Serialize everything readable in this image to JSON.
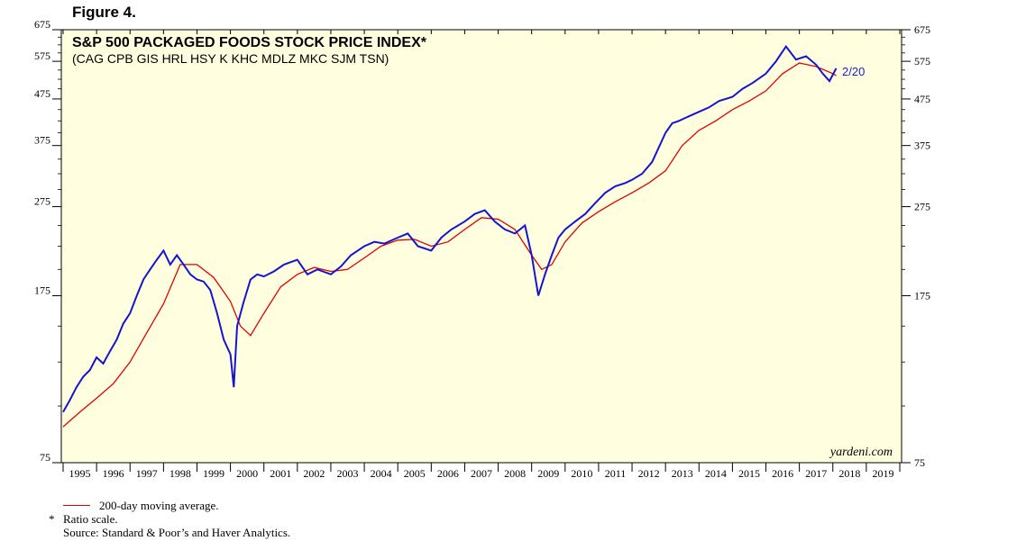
{
  "figure_label": "Figure 4.",
  "chart_data": {
    "type": "line",
    "title": "S&P 500 PACKAGED FOODS STOCK PRICE INDEX*",
    "subtitle": "(CAG CPB GIS HRL HSY K KHC MDLZ MKC SJM TSN)",
    "scale": "log",
    "ylim": [
      75,
      675
    ],
    "y_ticks": [
      75,
      175,
      275,
      375,
      475,
      575,
      675
    ],
    "xlim": [
      1995,
      2020
    ],
    "x_tick_labels": [
      "1995",
      "1996",
      "1997",
      "1998",
      "1999",
      "2000",
      "2001",
      "2002",
      "2003",
      "2004",
      "2005",
      "2006",
      "2007",
      "2008",
      "2009",
      "2010",
      "2011",
      "2012",
      "2013",
      "2014",
      "2015",
      "2016",
      "2017",
      "2018",
      "2019"
    ],
    "end_label": "2/20",
    "watermark": "yardeni.com",
    "colors": {
      "index": "#1414d2",
      "moving_average": "#e00000",
      "plot_bg": "#ffffe0"
    },
    "series": [
      {
        "name": "S&P 500 Packaged Foods Stock Price Index",
        "x": [
          1995.0,
          1995.2,
          1995.4,
          1995.6,
          1995.8,
          1996.0,
          1996.2,
          1996.4,
          1996.6,
          1996.8,
          1997.0,
          1997.2,
          1997.4,
          1997.6,
          1997.8,
          1998.0,
          1998.2,
          1998.4,
          1998.6,
          1998.8,
          1999.0,
          1999.2,
          1999.4,
          1999.6,
          1999.8,
          2000.0,
          2000.1,
          2000.2,
          2000.4,
          2000.6,
          2000.8,
          2001.0,
          2001.3,
          2001.6,
          2002.0,
          2002.3,
          2002.6,
          2003.0,
          2003.3,
          2003.6,
          2004.0,
          2004.3,
          2004.6,
          2005.0,
          2005.3,
          2005.6,
          2006.0,
          2006.3,
          2006.6,
          2007.0,
          2007.3,
          2007.6,
          2007.9,
          2008.2,
          2008.5,
          2008.8,
          2009.0,
          2009.2,
          2009.4,
          2009.6,
          2009.8,
          2010.0,
          2010.3,
          2010.6,
          2010.9,
          2011.2,
          2011.5,
          2011.8,
          2012.0,
          2012.3,
          2012.6,
          2013.0,
          2013.2,
          2013.4,
          2013.7,
          2014.0,
          2014.3,
          2014.6,
          2015.0,
          2015.3,
          2015.6,
          2016.0,
          2016.3,
          2016.6,
          2016.9,
          2017.2,
          2017.5,
          2017.7,
          2017.9,
          2018.1
        ],
        "values": [
          97,
          103,
          110,
          116,
          120,
          128,
          124,
          132,
          140,
          152,
          160,
          175,
          190,
          200,
          210,
          220,
          205,
          215,
          205,
          195,
          190,
          188,
          180,
          160,
          140,
          130,
          110,
          150,
          170,
          190,
          195,
          193,
          198,
          205,
          210,
          195,
          200,
          195,
          203,
          215,
          225,
          230,
          228,
          235,
          240,
          225,
          220,
          235,
          245,
          255,
          265,
          270,
          255,
          245,
          240,
          250,
          215,
          175,
          195,
          215,
          235,
          245,
          255,
          265,
          280,
          295,
          305,
          310,
          315,
          325,
          345,
          400,
          420,
          425,
          435,
          445,
          455,
          470,
          480,
          500,
          515,
          540,
          575,
          620,
          580,
          590,
          565,
          540,
          520,
          555
        ]
      },
      {
        "name": "200-day moving average",
        "x": [
          1995.0,
          1995.5,
          1996.0,
          1996.5,
          1997.0,
          1997.5,
          1998.0,
          1998.5,
          1999.0,
          1999.5,
          2000.0,
          2000.3,
          2000.6,
          2001.0,
          2001.5,
          2002.0,
          2002.5,
          2003.0,
          2003.5,
          2004.0,
          2004.5,
          2005.0,
          2005.5,
          2006.0,
          2006.5,
          2007.0,
          2007.5,
          2008.0,
          2008.5,
          2009.0,
          2009.3,
          2009.6,
          2010.0,
          2010.5,
          2011.0,
          2011.5,
          2012.0,
          2012.5,
          2013.0,
          2013.5,
          2014.0,
          2014.5,
          2015.0,
          2015.5,
          2016.0,
          2016.5,
          2017.0,
          2017.5,
          2018.0,
          2018.1
        ],
        "values": [
          90,
          97,
          104,
          112,
          125,
          145,
          168,
          205,
          205,
          192,
          170,
          150,
          143,
          160,
          183,
          195,
          202,
          198,
          200,
          212,
          225,
          232,
          233,
          225,
          230,
          245,
          260,
          258,
          245,
          215,
          200,
          205,
          230,
          253,
          268,
          282,
          295,
          310,
          330,
          375,
          405,
          425,
          450,
          470,
          495,
          540,
          570,
          560,
          540,
          535
        ]
      }
    ]
  },
  "legend": {
    "moving_average_label": "200-day moving average."
  },
  "footnotes": {
    "star": "*",
    "ratio": "Ratio scale.",
    "source": "Source: Standard & Poor’s and Haver Analytics."
  }
}
